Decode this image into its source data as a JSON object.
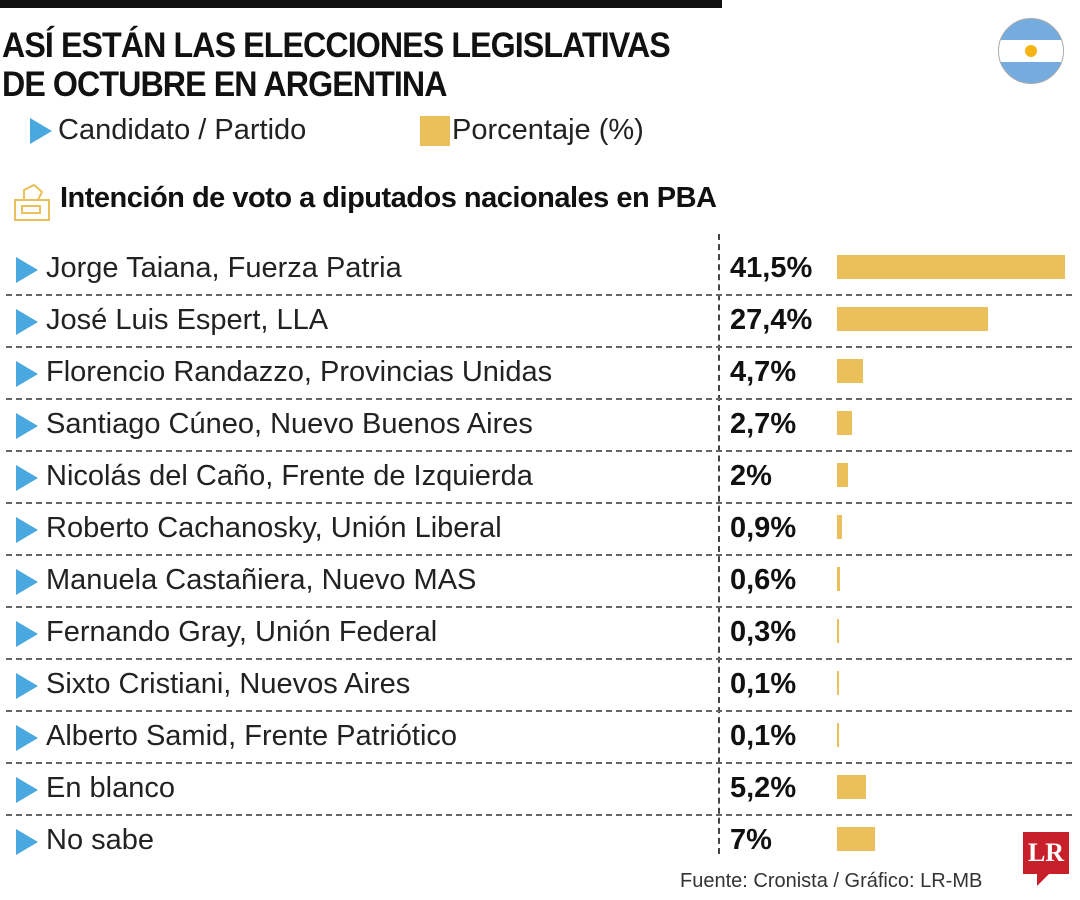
{
  "header": {
    "title_line1": "ASÍ ESTÁN LAS ELECCIONES LEGISLATIVAS",
    "title_line2": "DE OCTUBRE EN ARGENTINA",
    "flag_icon": "argentina-flag-icon"
  },
  "legend": {
    "candidate": "Candidato / Partido",
    "percent": "Porcentaje (%)"
  },
  "colors": {
    "bar": "#ebc05a",
    "marker": "#4aa8e0",
    "logo": "#c8202a"
  },
  "chart_data": {
    "type": "bar",
    "orientation": "horizontal",
    "title": "Intención de voto a diputados nacionales en PBA",
    "categories": [
      "Jorge Taiana, Fuerza Patria",
      "José Luis Espert, LLA",
      "Florencio Randazzo, Provincias Unidas",
      "Santiago Cúneo, Nuevo Buenos Aires",
      "Nicolás del Caño, Frente de Izquierda",
      "Roberto Cachanosky, Unión Liberal",
      "Manuela Castañiera, Nuevo MAS",
      "Fernando Gray, Unión Federal",
      "Sixto Cristiani, Nuevos Aires",
      "Alberto Samid, Frente Patriótico",
      "En blanco",
      "No sabe"
    ],
    "values": [
      41.5,
      27.4,
      4.7,
      2.7,
      2,
      0.9,
      0.6,
      0.3,
      0.1,
      0.1,
      5.2,
      7
    ],
    "labels": [
      "41,5%",
      "27,4%",
      "4,7%",
      "2,7%",
      "2%",
      "0,9%",
      "0,6%",
      "0,3%",
      "0,1%",
      "0,1%",
      "5,2%",
      "7%"
    ],
    "unit": "%"
  },
  "footer": {
    "source": "Fuente: Cronista / Gráfico: LR-MB",
    "logo": "LR"
  }
}
